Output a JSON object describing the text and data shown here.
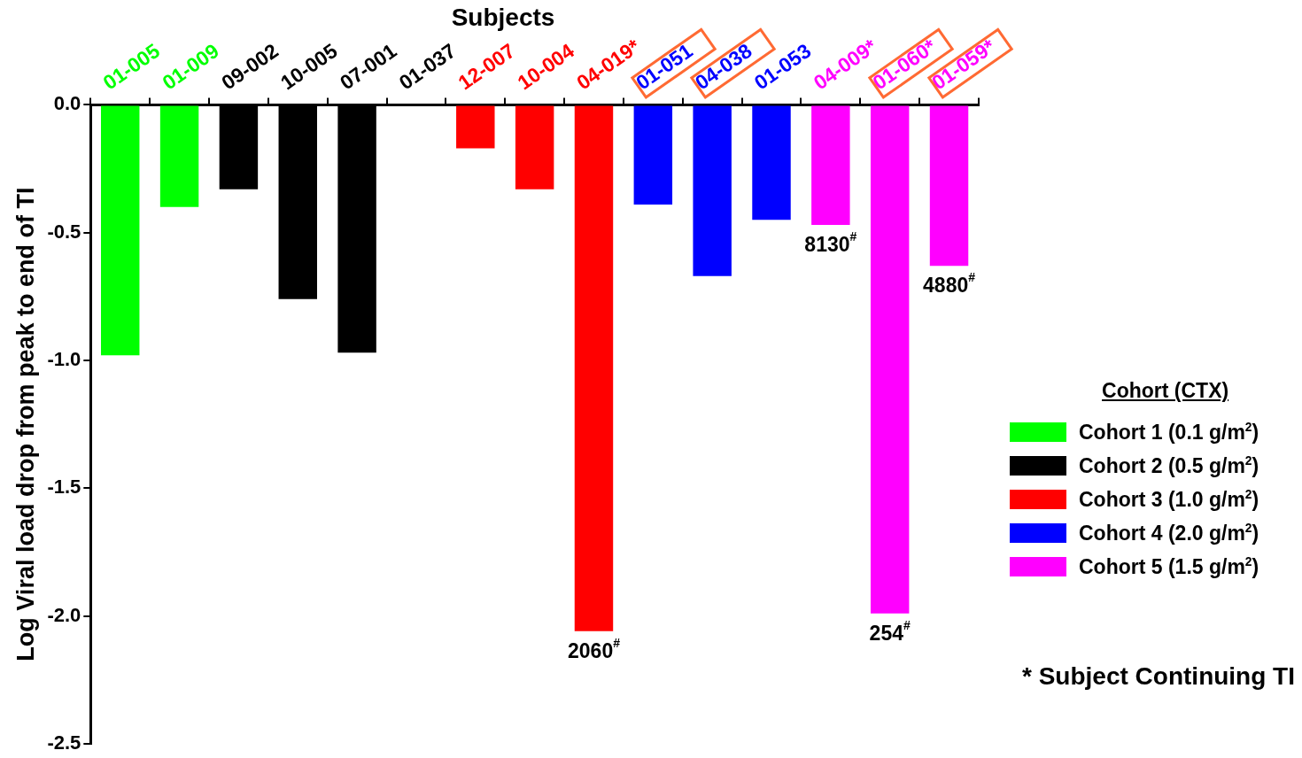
{
  "chart_data": {
    "type": "bar",
    "title": "Subjects",
    "ylabel": "Log Viral load drop from peak to end of TI",
    "legend_title": "Cohort (CTX)",
    "legend": "right",
    "grid": false,
    "categories": [
      "01-005",
      "01-009",
      "09-002",
      "10-005",
      "07-001",
      "01-037",
      "12-007",
      "10-004",
      "04-019*",
      "01-051",
      "04-038",
      "01-053",
      "04-009*",
      "01-060*",
      "01-059*"
    ],
    "ylim": [
      -2.5,
      0
    ],
    "yticks": [
      {
        "value": 0,
        "label": "0.0"
      },
      {
        "value": -0.5,
        "label": "-0.5"
      },
      {
        "value": -1,
        "label": "-1.0"
      },
      {
        "value": -1.5,
        "label": "-1.5"
      },
      {
        "value": -2,
        "label": "-2.0"
      },
      {
        "value": -2.5,
        "label": "-2.5"
      }
    ],
    "series": [
      {
        "name": "Cohort 1 (0.1 g/m$^{2}$)",
        "color": "#00ff00",
        "values": [
          -0.98,
          -0.4,
          null,
          null,
          null,
          null,
          null,
          null,
          null,
          null,
          null,
          null,
          null,
          null,
          null
        ]
      },
      {
        "name": "Cohort 2 (0.5 g/m$^{2}$)",
        "color": "#000000",
        "values": [
          null,
          null,
          -0.33,
          -0.76,
          -0.97,
          0,
          null,
          null,
          null,
          null,
          null,
          null,
          null,
          null,
          null
        ]
      },
      {
        "name": "Cohort 3 (1.0 g/m$^{2}$)",
        "color": "#ff0000",
        "values": [
          null,
          null,
          null,
          null,
          null,
          null,
          -0.17,
          -0.33,
          -2.06,
          null,
          null,
          null,
          null,
          null,
          null
        ]
      },
      {
        "name": "Cohort 4 (2.0 g/m$^{2}$)",
        "color": "#0000ff",
        "values": [
          null,
          null,
          null,
          null,
          null,
          null,
          null,
          null,
          null,
          -0.39,
          -0.67,
          -0.45,
          null,
          null,
          null
        ]
      },
      {
        "name": "Cohort 5 (1.5 g/m$^{2}$)",
        "color": "#ff00ff",
        "values": [
          null,
          null,
          null,
          null,
          null,
          null,
          null,
          null,
          null,
          null,
          null,
          null,
          -0.47,
          -1.99,
          -0.63
        ]
      }
    ],
    "annotations": [
      "2060$^{#}$",
      "8130$^{#}$",
      "254$^{#}$",
      "4880$^{#}$",
      "* Subject Continuing TI"
    ]
  }
}
